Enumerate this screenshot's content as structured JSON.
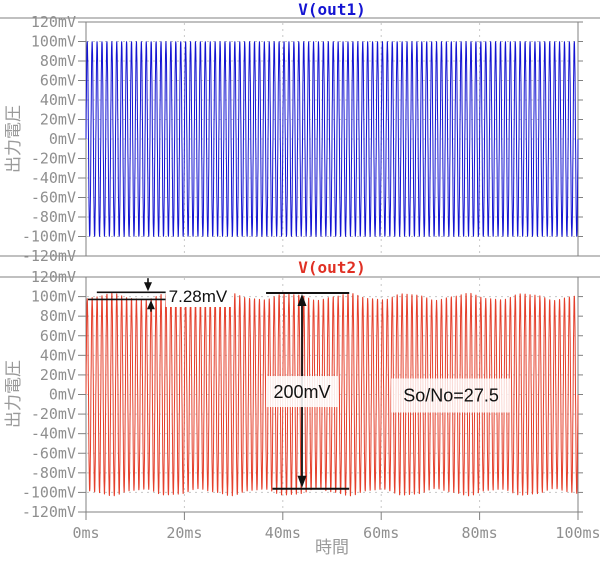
{
  "window": {
    "background": "#ffffff"
  },
  "colors": {
    "axis_line": "#808080",
    "grid_line": "#c8c8c8",
    "tick_label": "#8f8f8f",
    "annotation": "#111111",
    "trace_blue": "#1414d2",
    "trace_red": "#e5402c"
  },
  "chart_data": [
    {
      "type": "line",
      "title": "V(out1)",
      "title_color": "#1414d2",
      "trace_color": "#1414d2",
      "ylabel": "出力電圧",
      "x_range_ms": [
        0,
        100
      ],
      "y_range_mV": [
        -120,
        120
      ],
      "x_tick_step_ms": 20,
      "y_tick_step_mV": 20,
      "x_tick_labels": [
        "0ms",
        "20ms",
        "40ms",
        "60ms",
        "80ms",
        "100ms"
      ],
      "y_tick_labels": [
        "120mV",
        "100mV",
        "80mV",
        "60mV",
        "40mV",
        "20mV",
        "0mV",
        "-20mV",
        "-40mV",
        "-60mV",
        "-80mV",
        "-100mV",
        "-120mV"
      ],
      "grid": true,
      "show_x_tick_labels": false,
      "series": [
        {
          "name": "V(out1)",
          "waveform": "sine",
          "amplitude_mV": 100,
          "frequency_hz": 1000,
          "envelope_ripple": []
        }
      ],
      "annotations": []
    },
    {
      "type": "line",
      "title": "V(out2)",
      "title_color": "#e03024",
      "trace_color": "#e5402c",
      "ylabel": "出力電圧",
      "xlabel": "時間",
      "x_range_ms": [
        0,
        100
      ],
      "y_range_mV": [
        -120,
        120
      ],
      "x_tick_step_ms": 20,
      "y_tick_step_mV": 20,
      "x_tick_labels": [
        "0ms",
        "20ms",
        "40ms",
        "60ms",
        "80ms",
        "100ms"
      ],
      "y_tick_labels": [
        "120mV",
        "100mV",
        "80mV",
        "60mV",
        "40mV",
        "20mV",
        "0mV",
        "-20mV",
        "-40mV",
        "-60mV",
        "-80mV",
        "-100mV",
        "-120mV"
      ],
      "grid": true,
      "show_x_tick_labels": true,
      "series": [
        {
          "name": "V(out2)",
          "waveform": "sine",
          "amplitude_mV": 100,
          "frequency_hz": 1000,
          "ripple_peak_to_peak_mV": 7.28,
          "envelope_ripple": [
            {
              "amp_mV": 3.1,
              "freq_hz": 83,
              "phase": -1.1
            },
            {
              "amp_mV": 0.7,
              "freq_hz": 207,
              "phase": 0.6
            }
          ]
        }
      ],
      "annotations": [
        {
          "type": "ripple_marker",
          "label": "7.28mV",
          "line1": {
            "mV": 104.4,
            "x_ms": [
              2.2,
              16.3
            ]
          },
          "line2": {
            "mV": 97.1,
            "x_ms": [
              0.4,
              16.3
            ]
          },
          "down_arrow": {
            "x_ms": 12.6,
            "from_mV": 118.8,
            "to_mV": 105.4
          },
          "up_arrow": {
            "x_ms": 13.2,
            "from_mV": 84.6,
            "to_mV": 96.2
          },
          "text_x_ms": 16.8,
          "text_mV": 100.6
        },
        {
          "type": "vspan_arrow",
          "label": "200mV",
          "top_mV": 103.7,
          "bottom_mV": -96.3,
          "arrow_x_ms": 43.9,
          "top_bar_x_ms": [
            36.6,
            53.5
          ],
          "bottom_bar_x_ms": [
            37.9,
            53.5
          ],
          "label_center_ms": 43.9,
          "label_center_mV": 2.5
        },
        {
          "type": "text_box",
          "label": "So/No=27.5",
          "center_ms": 74.2,
          "center_mV": -1.0
        }
      ]
    }
  ]
}
